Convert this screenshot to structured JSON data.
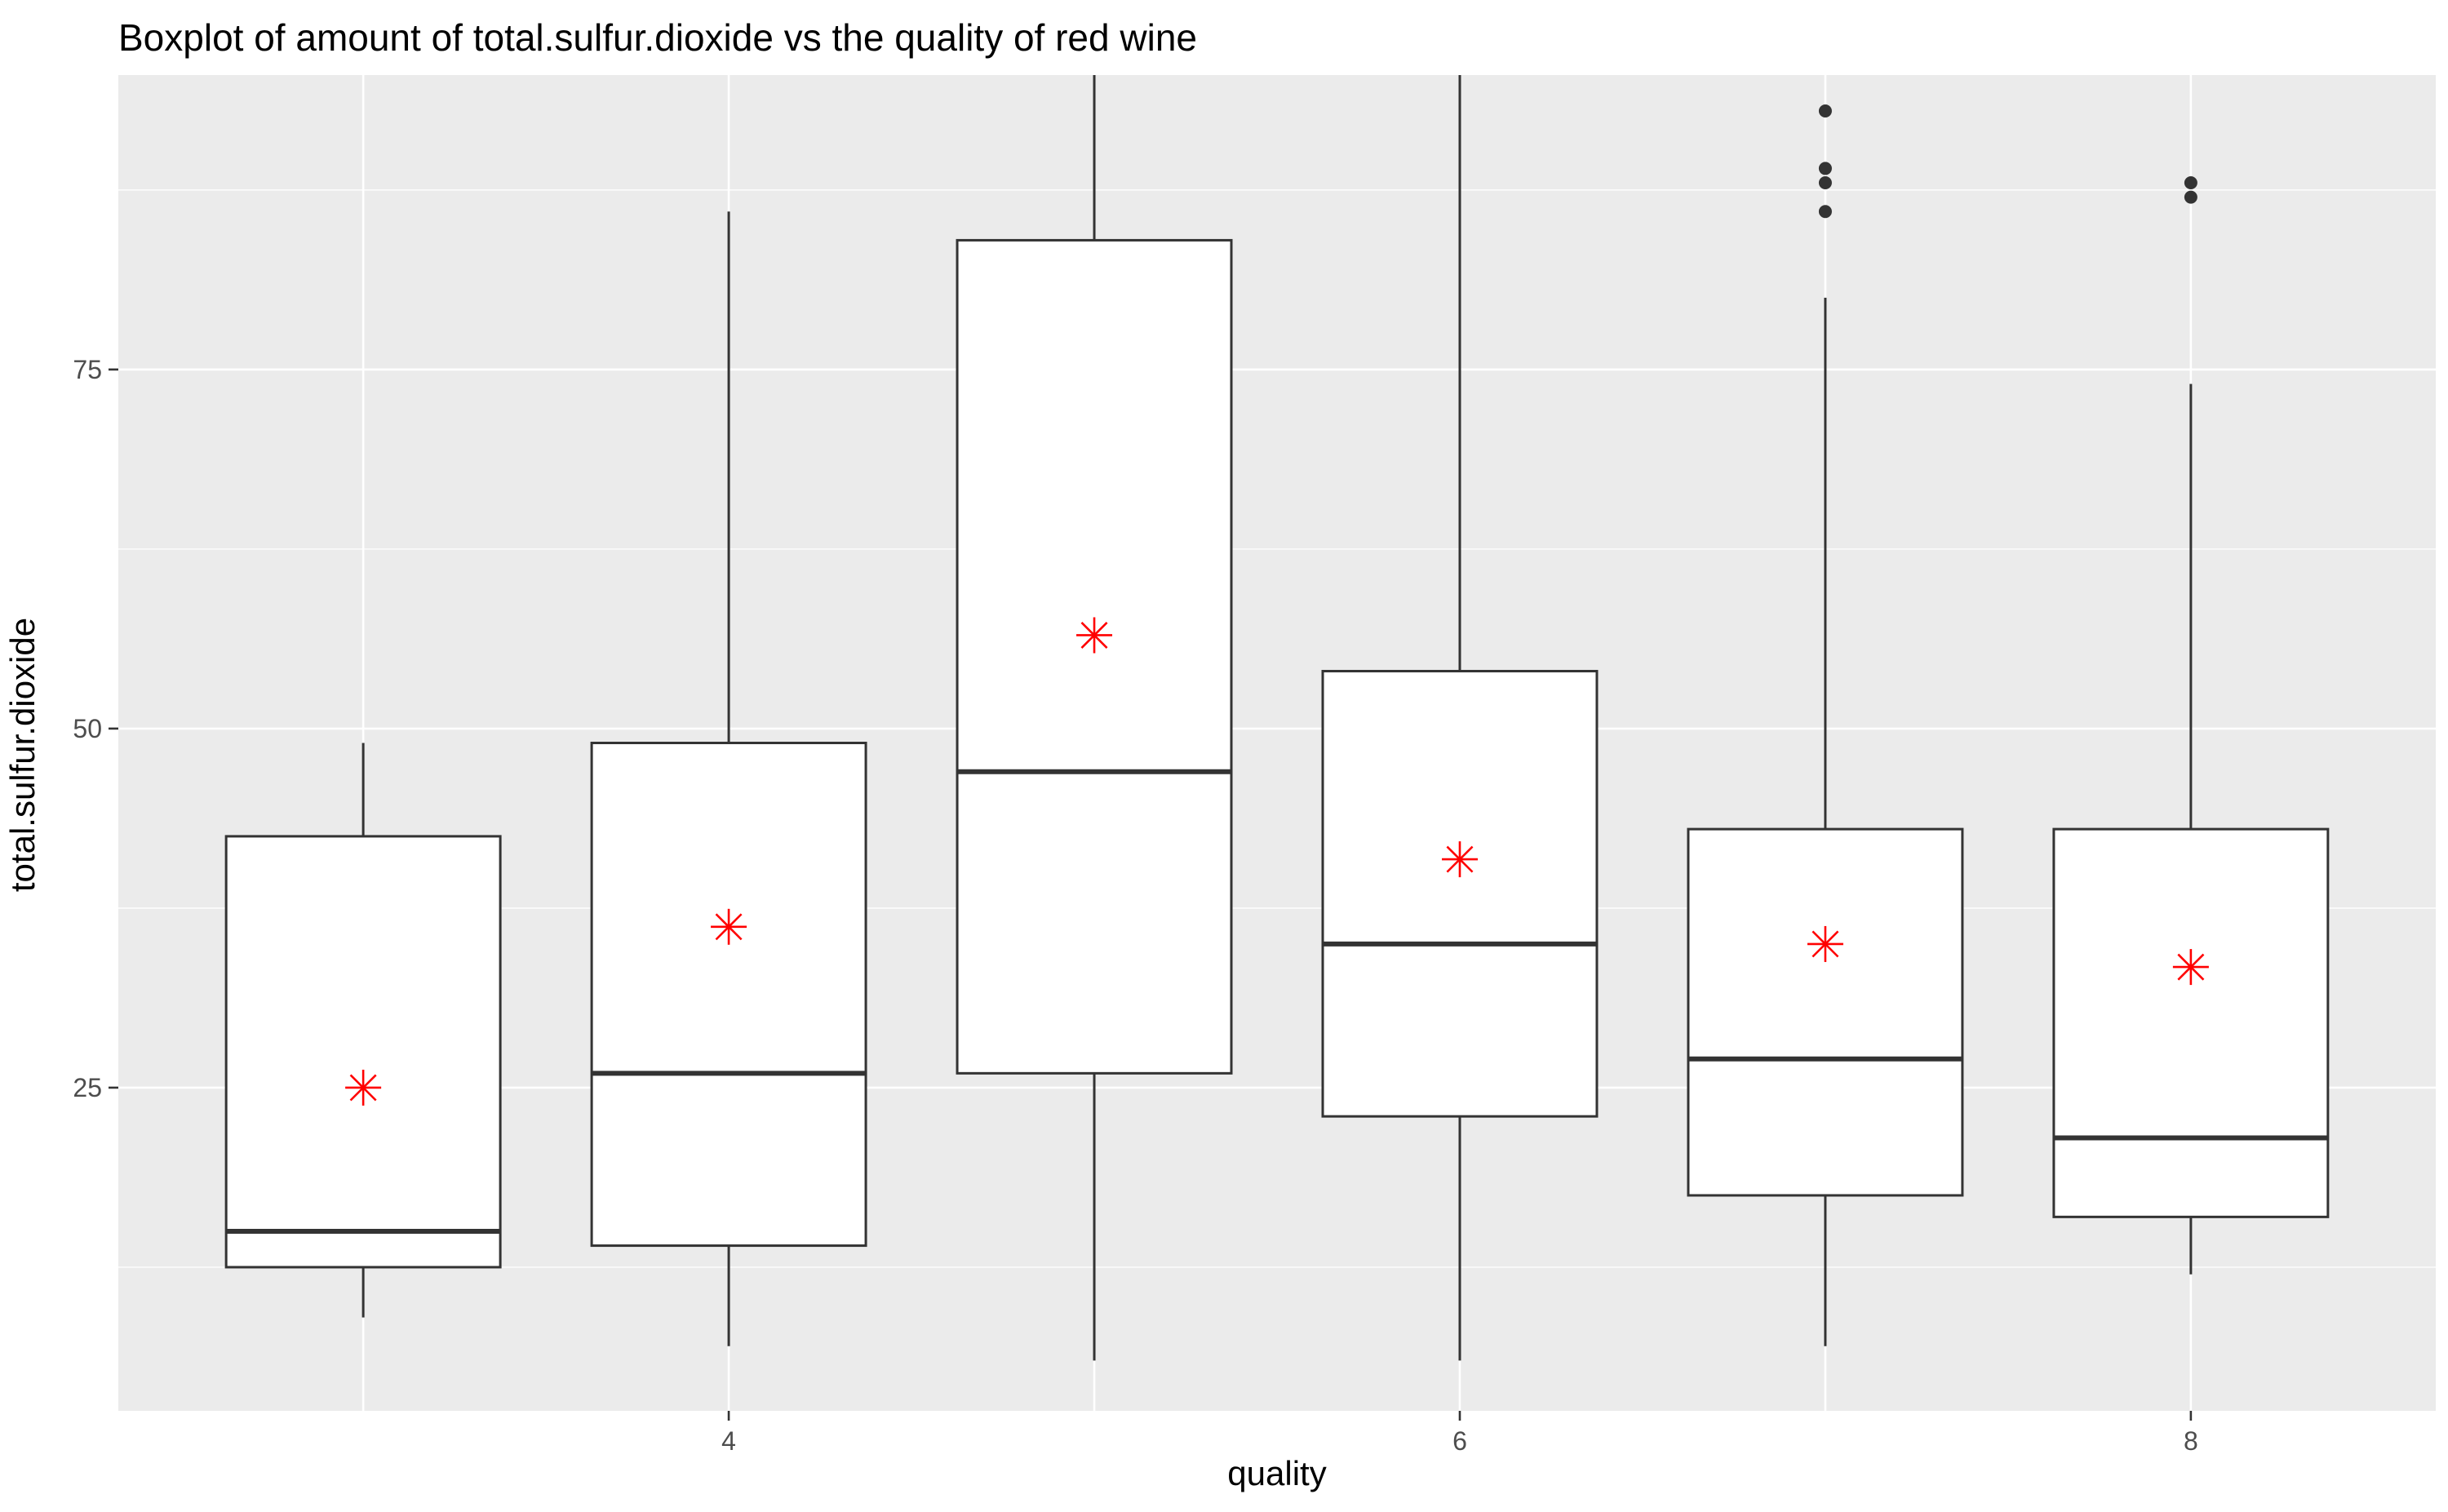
{
  "chart_data": {
    "type": "boxplot",
    "title": "Boxplot of amount of total.sulfur.dioxide vs the quality of red wine",
    "xlabel": "quality",
    "ylabel": "total.sulfur.dioxide",
    "xlim": [
      2.33,
      8.67
    ],
    "ylim": [
      2.5,
      95.5
    ],
    "x_ticks": [
      4,
      6,
      8
    ],
    "x_tick_labels": [
      "4",
      "6",
      "8"
    ],
    "y_ticks": [
      25,
      50,
      75
    ],
    "y_tick_labels": [
      "25",
      "50",
      "75"
    ],
    "grid": true,
    "colors": {
      "panel": "#ebebeb",
      "grid_major": "#ffffff",
      "box_fill": "#ffffff",
      "box_line": "#333333",
      "mean_marker": "#ff0000"
    },
    "boxes": [
      {
        "quality": 3,
        "lower_whisker": 9,
        "q1": 12.5,
        "median": 15,
        "q3": 42.5,
        "upper_whisker": 49,
        "mean": 25,
        "outliers": []
      },
      {
        "quality": 4,
        "lower_whisker": 7,
        "q1": 14,
        "median": 26,
        "q3": 49,
        "upper_whisker": 86,
        "mean": 36.2,
        "outliers": []
      },
      {
        "quality": 5,
        "lower_whisker": 6,
        "q1": 26,
        "median": 47,
        "q3": 84,
        "upper_whisker": 95.5,
        "mean": 56.5,
        "outliers": []
      },
      {
        "quality": 6,
        "lower_whisker": 6,
        "q1": 23,
        "median": 35,
        "q3": 54,
        "upper_whisker": 95.5,
        "mean": 40.9,
        "outliers": []
      },
      {
        "quality": 7,
        "lower_whisker": 7,
        "q1": 17.5,
        "median": 27,
        "q3": 43,
        "upper_whisker": 80,
        "mean": 35,
        "outliers": [
          86,
          88,
          89,
          93
        ]
      },
      {
        "quality": 8,
        "lower_whisker": 12,
        "q1": 16,
        "median": 21.5,
        "q3": 43,
        "upper_whisker": 74,
        "mean": 33.4,
        "outliers": [
          87,
          88
        ]
      }
    ]
  }
}
